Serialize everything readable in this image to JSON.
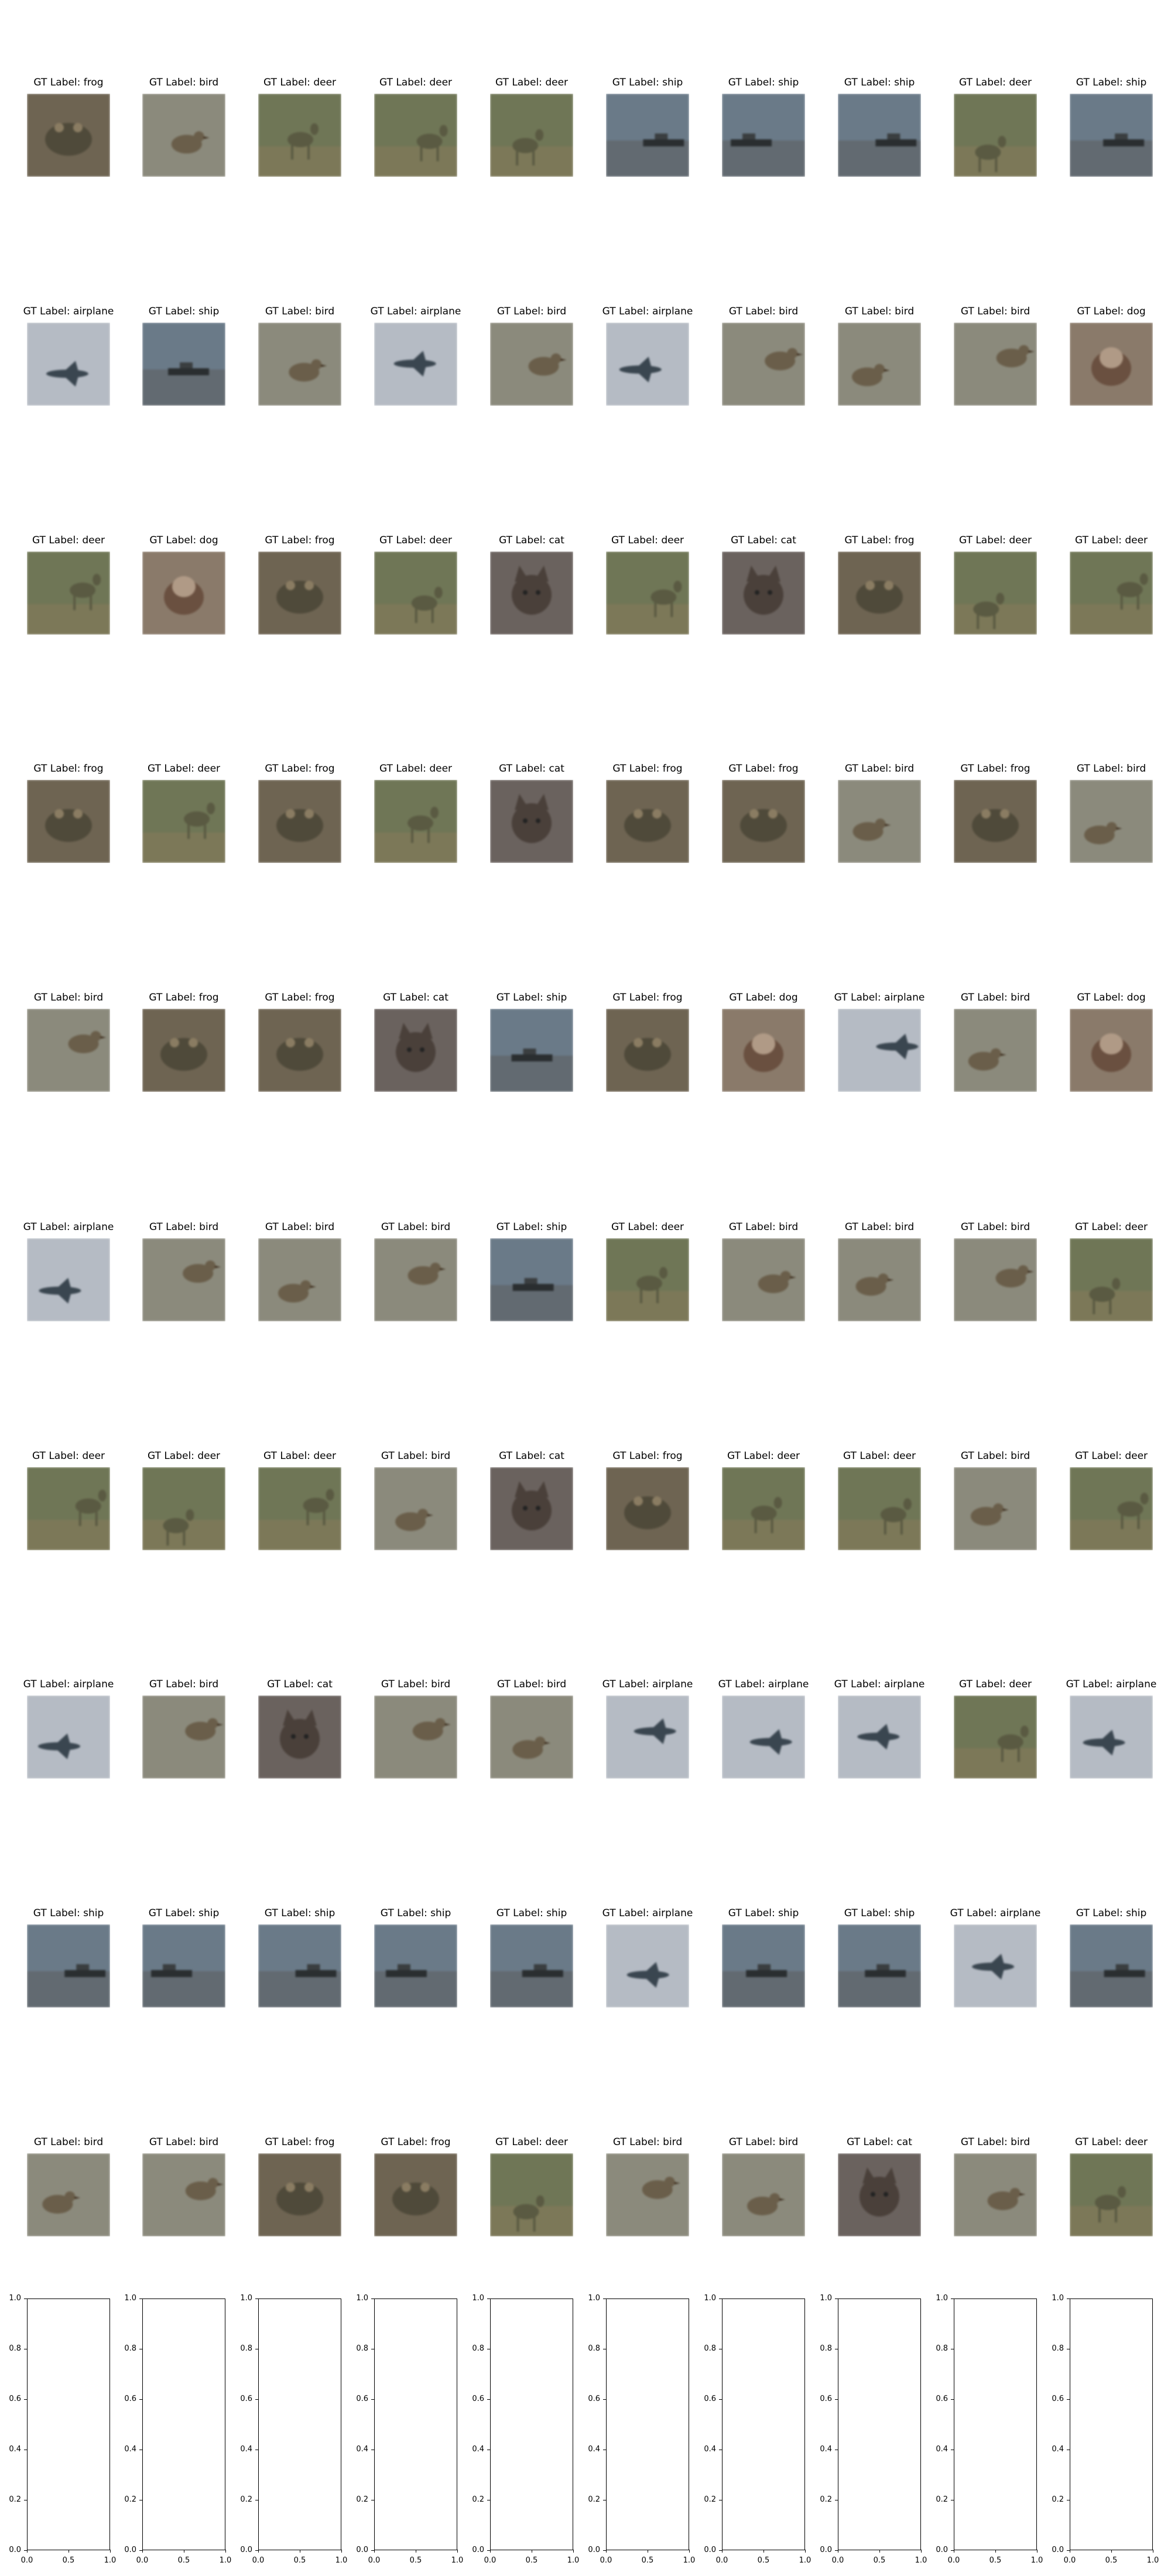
{
  "chart_data": {
    "type": "image_grid",
    "title": "",
    "rows": 11,
    "cols": 10,
    "title_prefix": "GT Label: ",
    "panels": [
      [
        "frog",
        "bird",
        "deer",
        "deer",
        "deer",
        "ship",
        "ship",
        "ship",
        "deer",
        "ship"
      ],
      [
        "airplane",
        "ship",
        "bird",
        "airplane",
        "bird",
        "airplane",
        "bird",
        "bird",
        "bird",
        "dog"
      ],
      [
        "deer",
        "dog",
        "frog",
        "deer",
        "cat",
        "deer",
        "cat",
        "frog",
        "deer",
        "deer"
      ],
      [
        "frog",
        "deer",
        "frog",
        "deer",
        "cat",
        "frog",
        "frog",
        "bird",
        "frog",
        "bird"
      ],
      [
        "bird",
        "frog",
        "frog",
        "cat",
        "ship",
        "frog",
        "dog",
        "airplane",
        "bird",
        "dog"
      ],
      [
        "airplane",
        "bird",
        "bird",
        "bird",
        "ship",
        "deer",
        "bird",
        "bird",
        "bird",
        "deer"
      ],
      [
        "deer",
        "deer",
        "deer",
        "bird",
        "cat",
        "frog",
        "deer",
        "deer",
        "bird",
        "deer"
      ],
      [
        "airplane",
        "bird",
        "cat",
        "bird",
        "bird",
        "airplane",
        "airplane",
        "airplane",
        "deer",
        "airplane"
      ],
      [
        "ship",
        "ship",
        "ship",
        "ship",
        "ship",
        "airplane",
        "ship",
        "ship",
        "airplane",
        "ship"
      ],
      [
        "bird",
        "bird",
        "frog",
        "frog",
        "deer",
        "bird",
        "bird",
        "cat",
        "bird",
        "deer"
      ]
    ],
    "panel_titles": [
      [
        "GT Label: frog",
        "GT Label: bird",
        "GT Label: deer",
        "GT Label: deer",
        "GT Label: deer",
        "GT Label: ship",
        "GT Label: ship",
        "GT Label: ship",
        "GT Label: deer",
        "GT Label: ship"
      ],
      [
        "GT Label: airplane",
        "GT Label: ship",
        "GT Label: bird",
        "GT Label: airplane",
        "GT Label: bird",
        "GT Label: airplane",
        "GT Label: bird",
        "GT Label: bird",
        "GT Label: bird",
        "GT Label: dog"
      ],
      [
        "GT Label: deer",
        "GT Label: dog",
        "GT Label: frog",
        "GT Label: deer",
        "GT Label: cat",
        "GT Label: deer",
        "GT Label: cat",
        "GT Label: frog",
        "GT Label: deer",
        "GT Label: deer"
      ],
      [
        "GT Label: frog",
        "GT Label: deer",
        "GT Label: frog",
        "GT Label: deer",
        "GT Label: cat",
        "GT Label: frog",
        "GT Label: frog",
        "GT Label: bird",
        "GT Label: frog",
        "GT Label: bird"
      ],
      [
        "GT Label: bird",
        "GT Label: frog",
        "GT Label: frog",
        "GT Label: cat",
        "GT Label: ship",
        "GT Label: frog",
        "GT Label: dog",
        "GT Label: airplane",
        "GT Label: bird",
        "GT Label: dog"
      ],
      [
        "GT Label: airplane",
        "GT Label: bird",
        "GT Label: bird",
        "GT Label: bird",
        "GT Label: ship",
        "GT Label: deer",
        "GT Label: bird",
        "GT Label: bird",
        "GT Label: bird",
        "GT Label: deer"
      ],
      [
        "GT Label: deer",
        "GT Label: deer",
        "GT Label: deer",
        "GT Label: bird",
        "GT Label: cat",
        "GT Label: frog",
        "GT Label: deer",
        "GT Label: deer",
        "GT Label: bird",
        "GT Label: deer"
      ],
      [
        "GT Label: airplane",
        "GT Label: bird",
        "GT Label: cat",
        "GT Label: bird",
        "GT Label: bird",
        "GT Label: airplane",
        "GT Label: airplane",
        "GT Label: airplane",
        "GT Label: deer",
        "GT Label: airplane"
      ],
      [
        "GT Label: ship",
        "GT Label: ship",
        "GT Label: ship",
        "GT Label: ship",
        "GT Label: ship",
        "GT Label: airplane",
        "GT Label: ship",
        "GT Label: ship",
        "GT Label: airplane",
        "GT Label: ship"
      ],
      [
        "GT Label: bird",
        "GT Label: bird",
        "GT Label: frog",
        "GT Label: frog",
        "GT Label: deer",
        "GT Label: bird",
        "GT Label: bird",
        "GT Label: cat",
        "GT Label: bird",
        "GT Label: deer"
      ]
    ],
    "empty_axes": {
      "count": 10,
      "xlim": [
        0.0,
        1.0
      ],
      "ylim": [
        0.0,
        1.0
      ],
      "xticks": [
        "0.0",
        "0.5",
        "1.0"
      ],
      "yticks": [
        "0.0",
        "0.2",
        "0.4",
        "0.6",
        "0.8",
        "1.0"
      ]
    }
  },
  "palette": {
    "frog": [
      "#6e6452",
      "#4f4a3a",
      "#8a7c62"
    ],
    "bird": [
      "#8b8a7c",
      "#6a5e4a",
      "#a89a80"
    ],
    "deer": [
      "#6f7656",
      "#5a5a42",
      "#8a7a5a"
    ],
    "ship": [
      "#8c959b",
      "#505860",
      "#6a7a88"
    ],
    "airplane": [
      "#9aa4ae",
      "#3a4650",
      "#c8ccd2"
    ],
    "dog": [
      "#8a7a6a",
      "#6a5040",
      "#b09a86"
    ],
    "cat": [
      "#6a625e",
      "#4a403a",
      "#9a8a82"
    ]
  }
}
